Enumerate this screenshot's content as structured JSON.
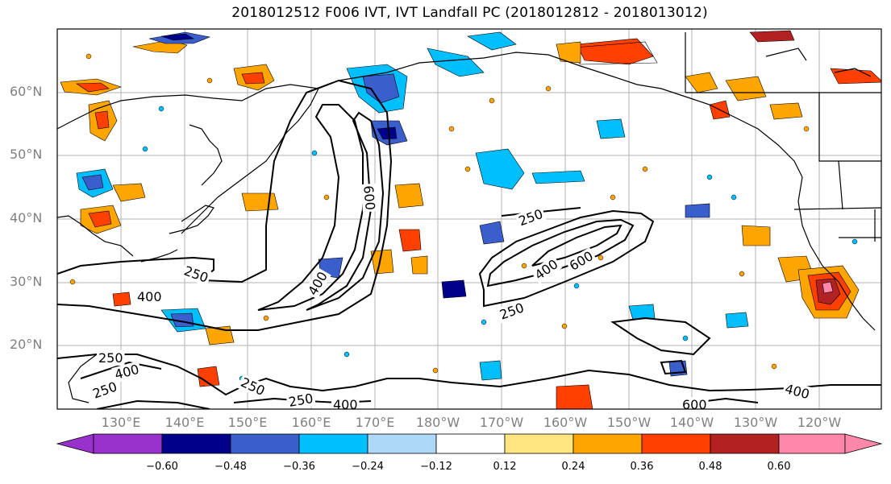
{
  "title": "2018012512 F006 IVT, IVT Landfall PC (2018012812 - 2018013012)",
  "lat_labels": [
    "60°N",
    "50°N",
    "40°N",
    "30°N",
    "20°N"
  ],
  "lon_labels": [
    "130°E",
    "140°E",
    "150°E",
    "160°E",
    "170°E",
    "180°W",
    "170°W",
    "160°W",
    "150°W",
    "140°W",
    "130°W",
    "120°W"
  ],
  "contour_labels": [
    "250",
    "400",
    "600",
    "250",
    "400",
    "600",
    "400",
    "250",
    "250",
    "250",
    "400",
    "250",
    "250",
    "400",
    "600",
    "400"
  ],
  "colorbar": {
    "colors": [
      "#9932cc",
      "#00008b",
      "#3a5fcd",
      "#00bfff",
      "#add8f7",
      "#ffffff",
      "#ffe680",
      "#ffa500",
      "#ff4000",
      "#b22222",
      "#ff88aa"
    ],
    "tick_labels": [
      "−0.60",
      "−0.48",
      "−0.36",
      "−0.24",
      "−0.12",
      "0.12",
      "0.24",
      "0.36",
      "0.48",
      "0.60"
    ]
  }
}
